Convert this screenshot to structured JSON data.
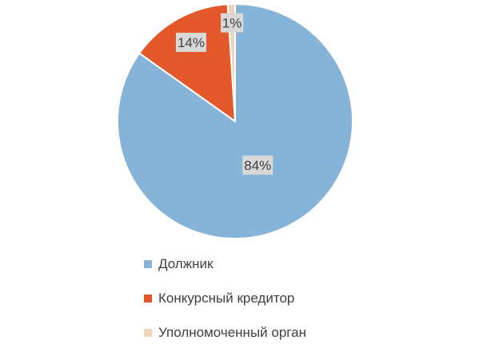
{
  "chart_data": {
    "type": "pie",
    "title": "",
    "categories": [
      "Должник",
      "Конкурсный кредитор",
      "Уполномоченный орган"
    ],
    "values": [
      84,
      14,
      1
    ],
    "data_labels": [
      "84%",
      "14%",
      "1%"
    ],
    "colors": [
      "#86b3d8",
      "#e3592c",
      "#ebd6bd"
    ],
    "legend_position": "bottom"
  }
}
